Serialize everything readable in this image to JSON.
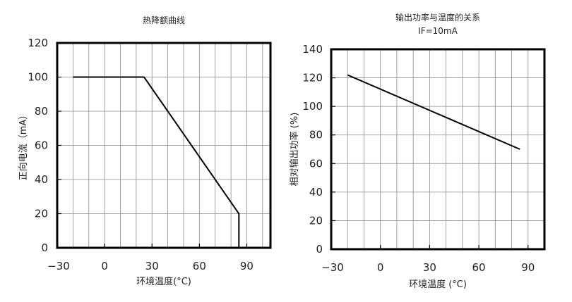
{
  "chart_data": [
    {
      "type": "line",
      "title": "热降额曲线",
      "subtitle": "",
      "xlabel": "环境温度(°C)",
      "ylabel": "正向电流（mA）",
      "xlim": [
        -30,
        105
      ],
      "ylim": [
        0,
        120
      ],
      "grid": true,
      "legend": "none",
      "xticks": [
        -30,
        0,
        30,
        60,
        90
      ],
      "xtick_labels": [
        "−30",
        "0",
        "30",
        "60",
        "90"
      ],
      "yticks": [
        0,
        20,
        40,
        60,
        80,
        100,
        120
      ],
      "ytick_labels": [
        "0",
        "20",
        "40",
        "60",
        "80",
        "100",
        "120"
      ],
      "series": [
        {
          "name": "",
          "x": [
            -20,
            25,
            85,
            85
          ],
          "y": [
            100,
            100,
            20,
            0
          ]
        }
      ]
    },
    {
      "type": "line",
      "title": "输出功率与温度的关系",
      "subtitle": "IF=10mA",
      "xlabel": "环境温度 (°C)",
      "ylabel": "相对输出功率 (%)",
      "xlim": [
        -30,
        100
      ],
      "ylim": [
        0,
        140
      ],
      "grid": true,
      "legend": "none",
      "xticks": [
        -30,
        0,
        30,
        60,
        90
      ],
      "xtick_labels": [
        "−30",
        "0",
        "30",
        "60",
        "90"
      ],
      "yticks": [
        0,
        20,
        40,
        60,
        80,
        100,
        120,
        140
      ],
      "ytick_labels": [
        "0",
        "20",
        "40",
        "60",
        "80",
        "100",
        "120",
        "140"
      ],
      "series": [
        {
          "name": "",
          "x": [
            -20,
            85
          ],
          "y": [
            122,
            70
          ]
        }
      ]
    }
  ]
}
